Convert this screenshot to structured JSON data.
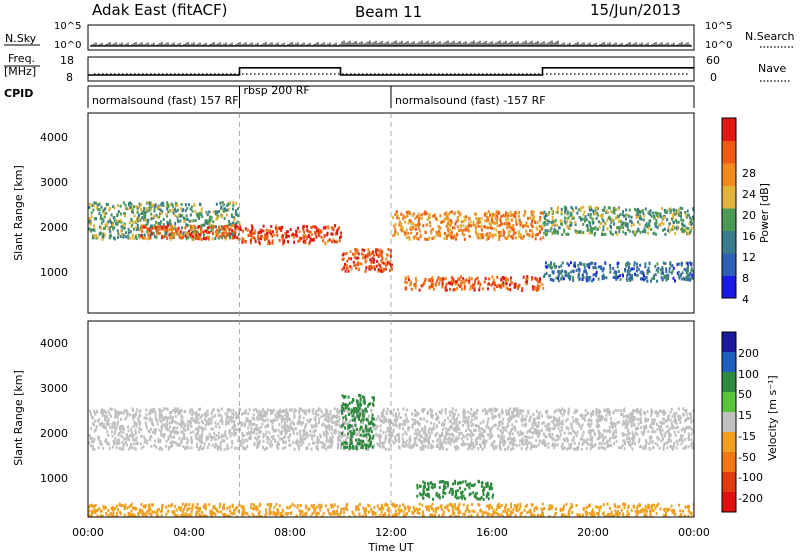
{
  "header": {
    "radar": "Adak East (fitACF)",
    "beam": "Beam 11",
    "date": "15/Jun/2013"
  },
  "panels": {
    "nsky_label": "N.Sky",
    "nsky_ticks": [
      "10^5",
      "10^0"
    ],
    "nsearch_label": "N.Search",
    "freq_label_1": "Freq.",
    "freq_label_2": "[MHz]",
    "freq_ticks": [
      "18",
      "8"
    ],
    "nave_label": "Nave",
    "nave_ticks": [
      "60",
      "0"
    ],
    "cpid_label": "CPID",
    "cpid_segments": [
      {
        "label": "normalsound (fast) 157 RF",
        "start_h": 0,
        "end_h": 6
      },
      {
        "label": "rbsp 200 RF",
        "start_h": 6,
        "end_h": 12
      },
      {
        "label": "normalsound (fast) -157 RF",
        "start_h": 12,
        "end_h": 24
      }
    ],
    "frequency_mhz": [
      {
        "start_h": 0,
        "end_h": 6,
        "value": 10.5
      },
      {
        "start_h": 6,
        "end_h": 10,
        "value": 13.5
      },
      {
        "start_h": 10,
        "end_h": 18,
        "value": 10.5
      },
      {
        "start_h": 18,
        "end_h": 24,
        "value": 13.5
      }
    ]
  },
  "power_panel": {
    "ylabel": "Slant Range [km]",
    "yticks": [
      "4000",
      "3000",
      "2000",
      "1000"
    ],
    "colorbar_label": "Power [dB]",
    "colorbar_ticks": [
      "28",
      "24",
      "20",
      "16",
      "12",
      "8",
      "4"
    ]
  },
  "velocity_panel": {
    "ylabel": "Slant Range [km]",
    "yticks": [
      "4000",
      "3000",
      "2000",
      "1000"
    ],
    "colorbar_label": "Velocity [m s⁻¹]",
    "colorbar_ticks": [
      "200",
      "100",
      "50",
      "15",
      "-15",
      "-50",
      "-100",
      "-200"
    ]
  },
  "xaxis": {
    "label": "Time UT",
    "ticks": [
      "00:00",
      "04:00",
      "08:00",
      "12:00",
      "16:00",
      "20:00",
      "00:00"
    ]
  },
  "colors": {
    "power_scale": [
      "#1a1ae6",
      "#2f5fb5",
      "#3a7d8a",
      "#4a9a55",
      "#e0b43c",
      "#f08a1e",
      "#ec5a14",
      "#e01a12"
    ],
    "velocity_scale": [
      "#1a1a9a",
      "#1f5fbf",
      "#2e8a3e",
      "#58c43a",
      "#c0c0c0",
      "#f0a01e",
      "#f07814",
      "#e03a10",
      "#e01010"
    ]
  },
  "chart_data": {
    "type": "heatmap",
    "title": "Adak East (fitACF) Beam 11 15/Jun/2013",
    "xlabel": "Time UT",
    "ylabel": "Slant Range [km]",
    "xlim_hours": [
      0,
      24
    ],
    "ylim_km": [
      180,
      4500
    ],
    "series": [
      {
        "name": "Power [dB]",
        "vlim": [
          0,
          32
        ],
        "bands": [
          {
            "start_h": 0.0,
            "end_h": 6.0,
            "range_km": [
              1800,
              2600
            ],
            "level": 14
          },
          {
            "start_h": 2.0,
            "end_h": 6.0,
            "range_km": [
              1800,
              2100
            ],
            "level": 26
          },
          {
            "start_h": 6.0,
            "end_h": 10.0,
            "range_km": [
              1700,
              2100
            ],
            "level": 28
          },
          {
            "start_h": 10.0,
            "end_h": 12.0,
            "range_km": [
              1100,
              1600
            ],
            "level": 26
          },
          {
            "start_h": 12.0,
            "end_h": 18.0,
            "range_km": [
              1800,
              2400
            ],
            "level": 22
          },
          {
            "start_h": 12.5,
            "end_h": 18.0,
            "range_km": [
              700,
              1000
            ],
            "level": 26
          },
          {
            "start_h": 18.0,
            "end_h": 24.0,
            "range_km": [
              1900,
              2500
            ],
            "level": 14
          },
          {
            "start_h": 18.0,
            "end_h": 24.0,
            "range_km": [
              900,
              1300
            ],
            "level": 8
          }
        ]
      },
      {
        "name": "Velocity [m s⁻¹]",
        "vlim": [
          -200,
          200
        ],
        "bands": [
          {
            "start_h": 0.0,
            "end_h": 24.0,
            "range_km": [
              1700,
              2600
            ],
            "level": 0
          },
          {
            "start_h": 10.0,
            "end_h": 11.3,
            "range_km": [
              1700,
              2900
            ],
            "level": 50
          },
          {
            "start_h": 13.0,
            "end_h": 16.0,
            "range_km": [
              600,
              1000
            ],
            "level": 60
          },
          {
            "start_h": 0.0,
            "end_h": 24.0,
            "range_km": [
              200,
              500
            ],
            "level": -20
          }
        ]
      }
    ]
  }
}
